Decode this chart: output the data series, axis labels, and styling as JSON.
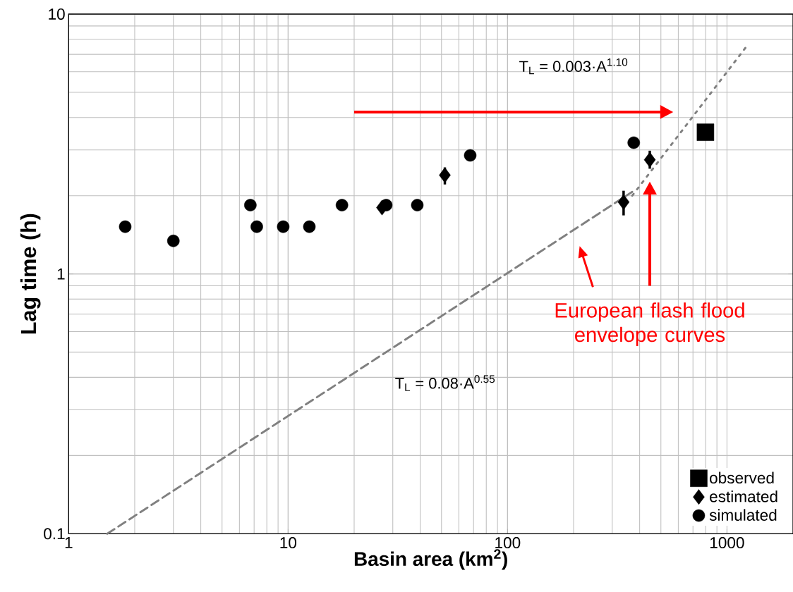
{
  "chart_data": {
    "type": "scatter",
    "xlabel": "Basin area (km$^{2}$)",
    "ylabel": "Lag time (h)",
    "log": "xy",
    "xlim": [
      1,
      2000
    ],
    "ylim": [
      0.1,
      10
    ],
    "xticks": [
      1,
      10,
      100,
      1000
    ],
    "yticks": [
      0.1,
      1,
      10
    ],
    "grid": true,
    "legend": "bottom right",
    "series": [
      {
        "name": "observed",
        "marker": "square",
        "color": "#000000",
        "x": [
          798
        ],
        "values": [
          3.51
        ]
      },
      {
        "name": "estimated",
        "marker": "diamond",
        "color": "#000000",
        "x": [
          26.8,
          51.8,
          338,
          445
        ],
        "values": [
          1.8,
          2.4,
          1.89,
          2.75
        ],
        "errors": [
          null,
          [
            2.21,
            2.57
          ],
          [
            1.68,
            2.09
          ],
          [
            2.54,
            2.98
          ]
        ]
      },
      {
        "name": "simulated",
        "marker": "circle",
        "color": "#000000",
        "x": [
          1.81,
          3.0,
          6.73,
          7.2,
          9.5,
          12.5,
          17.6,
          28,
          38.8,
          67.6,
          376
        ],
        "values": [
          1.52,
          1.34,
          1.84,
          1.52,
          1.52,
          1.52,
          1.84,
          1.84,
          1.84,
          2.86,
          3.2
        ]
      },
      {
        "type": "line",
        "line_style": "dashed",
        "color": "#808080",
        "x": [
          1.5,
          370
        ],
        "values": [
          0.1,
          2.07
        ]
      },
      {
        "type": "line",
        "line_style": "dotted",
        "color": "#808080",
        "x": [
          370,
          1250
        ],
        "values": [
          2.0,
          7.66
        ]
      }
    ],
    "annotations": [
      "T$_{L}$ = 0.003·A$^{1.10}$",
      "T$_{L}$ = 0.08·A$^{0.55}$",
      "European flash flood envelope curves"
    ]
  }
}
